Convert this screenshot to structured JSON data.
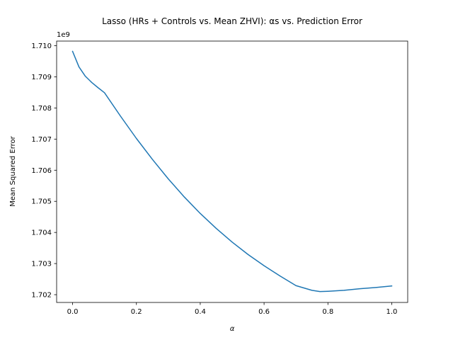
{
  "chart_data": {
    "type": "line",
    "title": "Lasso (HRs + Controls vs. Mean ZHVI): αs vs. Prediction Error",
    "xlabel": "α",
    "ylabel": "Mean Squared Error",
    "y_offset_label": "1e9",
    "xlim": [
      -0.05,
      1.05
    ],
    "ylim": [
      1.70175,
      1.71015
    ],
    "y_scale_exponent": 9,
    "grid": false,
    "x_ticks": [
      0.0,
      0.2,
      0.4,
      0.6,
      0.8,
      1.0
    ],
    "x_tick_labels": [
      "0.0",
      "0.2",
      "0.4",
      "0.6",
      "0.8",
      "1.0"
    ],
    "y_ticks": [
      1.702,
      1.703,
      1.704,
      1.705,
      1.706,
      1.707,
      1.708,
      1.709,
      1.71
    ],
    "y_tick_labels": [
      "1.702",
      "1.703",
      "1.704",
      "1.705",
      "1.706",
      "1.707",
      "1.708",
      "1.709",
      "1.710"
    ],
    "series": [
      {
        "color": "#1f77b4",
        "x": [
          0.0,
          0.02,
          0.04,
          0.06,
          0.08,
          0.1,
          0.15,
          0.2,
          0.25,
          0.3,
          0.35,
          0.4,
          0.45,
          0.5,
          0.55,
          0.6,
          0.65,
          0.7,
          0.75,
          0.775,
          0.8,
          0.85,
          0.9,
          0.95,
          1.0
        ],
        "y": [
          1.70982,
          1.70932,
          1.70902,
          1.70882,
          1.70865,
          1.70849,
          1.70774,
          1.70702,
          1.70635,
          1.70572,
          1.70514,
          1.70461,
          1.70413,
          1.70369,
          1.70329,
          1.70293,
          1.7026,
          1.70229,
          1.70214,
          1.7021,
          1.70211,
          1.70214,
          1.70219,
          1.70223,
          1.70228
        ]
      }
    ]
  }
}
